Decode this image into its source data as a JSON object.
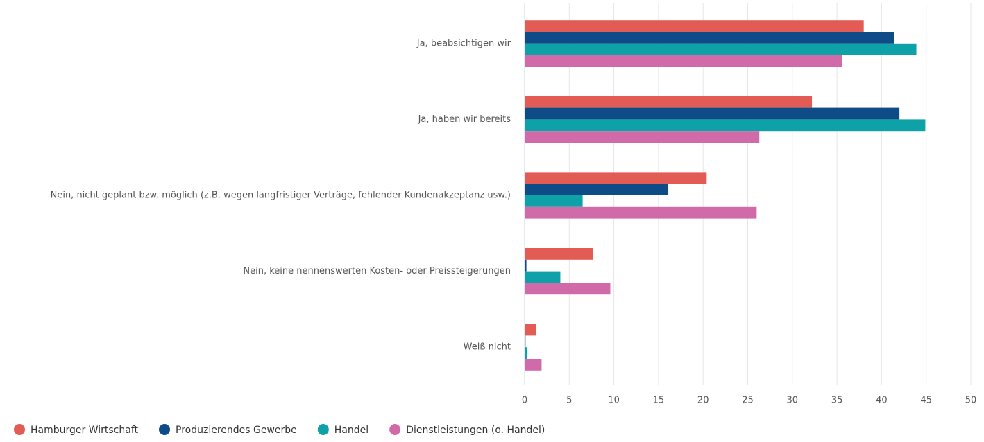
{
  "chart_data": {
    "type": "hbar",
    "categories": [
      "Ja, beabsichtigen wir",
      "Ja, haben wir bereits",
      "Nein, nicht geplant bzw. möglich (z.B. wegen langfristiger Verträge, fehlender Kundenakzeptanz usw.)",
      "Nein, keine nennenswerten Kosten- oder Preissteigerungen",
      "Weiß nicht"
    ],
    "series": [
      {
        "name": "Hamburger Wirtschaft",
        "color": "#e35b55",
        "values": [
          38.0,
          32.2,
          20.4,
          7.7,
          1.3
        ]
      },
      {
        "name": "Produzierendes Gewerbe",
        "color": "#0d4c87",
        "values": [
          41.4,
          42.0,
          16.1,
          0.2,
          0.1
        ]
      },
      {
        "name": "Handel",
        "color": "#0ea1a8",
        "values": [
          43.9,
          44.9,
          6.5,
          4.0,
          0.3
        ]
      },
      {
        "name": "Dienstleistungen (o. Handel)",
        "color": "#d06aa8",
        "values": [
          35.6,
          26.3,
          26.0,
          9.6,
          1.9
        ]
      }
    ],
    "xlim": [
      0,
      50
    ],
    "xticks": [
      0,
      5,
      10,
      15,
      20,
      25,
      30,
      35,
      40,
      45,
      50
    ],
    "grid": true,
    "legend": "bottom"
  }
}
